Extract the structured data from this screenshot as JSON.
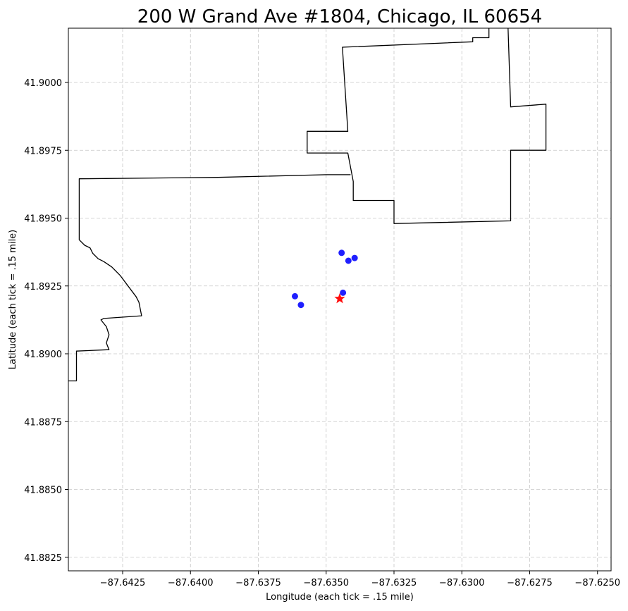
{
  "chart_data": {
    "type": "scatter",
    "title": "200 W Grand Ave #1804, Chicago, IL 60654",
    "xlabel": "Longitude (each tick = .15 mile)",
    "ylabel": "Latitude (each tick = .15 mile)",
    "xlim": [
      -87.6445,
      -87.6245
    ],
    "ylim": [
      41.882,
      41.902
    ],
    "grid": true,
    "x_ticks": [
      -87.6425,
      -87.64,
      -87.6375,
      -87.635,
      -87.6325,
      -87.63,
      -87.6275,
      -87.625
    ],
    "x_tick_labels": [
      "−87.6425",
      "−87.6400",
      "−87.6375",
      "−87.6350",
      "−87.6325",
      "−87.6300",
      "−87.6275",
      "−87.6250"
    ],
    "y_ticks": [
      41.8825,
      41.885,
      41.8875,
      41.89,
      41.8925,
      41.895,
      41.8975,
      41.9
    ],
    "y_tick_labels": [
      "41.8825",
      "41.8850",
      "41.8875",
      "41.8900",
      "41.8925",
      "41.8950",
      "41.8975",
      "41.9000"
    ],
    "colors": {
      "points": "#0000ff",
      "target": "#ff0000",
      "boundary": "#000000",
      "grid": "#b0b0b0"
    },
    "points": [
      {
        "x": -87.63443,
        "y": 41.89372
      },
      {
        "x": -87.63418,
        "y": 41.89343
      },
      {
        "x": -87.63395,
        "y": 41.89353
      },
      {
        "x": -87.63615,
        "y": 41.89212
      },
      {
        "x": -87.63593,
        "y": 41.8918
      },
      {
        "x": -87.63438,
        "y": 41.89225
      }
    ],
    "target": {
      "x": -87.6345,
      "y": 41.89203
    },
    "boundaries": [
      [
        [
          -87.629,
          41.9021
        ],
        [
          -87.629,
          41.90165
        ],
        [
          -87.6296,
          41.90165
        ],
        [
          -87.6296,
          41.9015
        ],
        [
          -87.6344,
          41.9013
        ],
        [
          -87.6342,
          41.8982
        ],
        [
          -87.6357,
          41.8982
        ],
        [
          -87.6357,
          41.8974
        ],
        [
          -87.6342,
          41.8974
        ],
        [
          -87.634,
          41.89635
        ],
        [
          -87.634,
          41.89565
        ],
        [
          -87.6325,
          41.89565
        ],
        [
          -87.6325,
          41.8948
        ],
        [
          -87.6282,
          41.8949
        ],
        [
          -87.6282,
          41.8975
        ],
        [
          -87.6269,
          41.8975
        ],
        [
          -87.6269,
          41.8992
        ],
        [
          -87.6282,
          41.8991
        ],
        [
          -87.6283,
          41.9021
        ]
      ],
      [
        [
          -87.6341,
          41.8966
        ],
        [
          -87.635,
          41.8966
        ],
        [
          -87.639,
          41.8965
        ],
        [
          -87.6441,
          41.89645
        ],
        [
          -87.6441,
          41.8942
        ],
        [
          -87.6439,
          41.894
        ],
        [
          -87.6437,
          41.8939
        ],
        [
          -87.6436,
          41.8937
        ],
        [
          -87.6434,
          41.8935
        ],
        [
          -87.6432,
          41.8934
        ],
        [
          -87.6429,
          41.8932
        ],
        [
          -87.6426,
          41.8929
        ],
        [
          -87.6423,
          41.8925
        ],
        [
          -87.642,
          41.8921
        ],
        [
          -87.6419,
          41.8919
        ],
        [
          -87.6418,
          41.8914
        ],
        [
          -87.6432,
          41.8913
        ],
        [
          -87.6433,
          41.89125
        ],
        [
          -87.6431,
          41.891
        ],
        [
          -87.643,
          41.8907
        ],
        [
          -87.6431,
          41.8904
        ],
        [
          -87.643,
          41.89015
        ],
        [
          -87.6442,
          41.8901
        ],
        [
          -87.6442,
          41.889
        ],
        [
          -87.6445,
          41.889
        ]
      ]
    ]
  }
}
